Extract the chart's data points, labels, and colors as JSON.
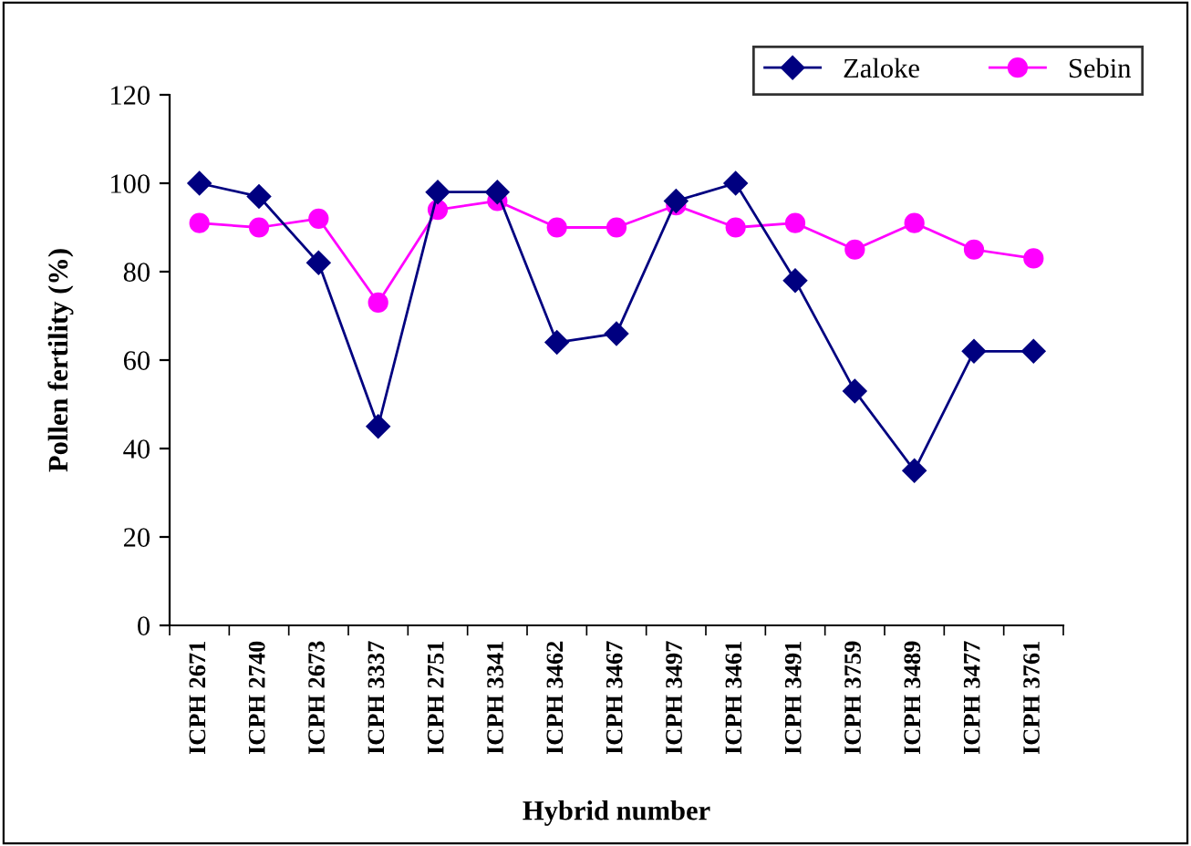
{
  "chart_data": {
    "type": "line",
    "xlabel": "Hybrid number",
    "ylabel": "Pollen fertility (%)",
    "categories": [
      "ICPH 2671",
      "ICPH 2740",
      "ICPH 2673",
      "ICPH 3337",
      "ICPH 2751",
      "ICPH 3341",
      "ICPH 3462",
      "ICPH 3467",
      "ICPH 3497",
      "ICPH 3461",
      "ICPH 3491",
      "ICPH 3759",
      "ICPH 3489",
      "ICPH 3477",
      "ICPH 3761"
    ],
    "series": [
      {
        "name": "Zaloke",
        "color": "#000080",
        "marker": "diamond",
        "values": [
          100,
          97,
          82,
          45,
          98,
          98,
          64,
          66,
          96,
          100,
          78,
          53,
          35,
          62,
          62
        ]
      },
      {
        "name": "Sebin",
        "color": "#ff00ff",
        "marker": "circle",
        "values": [
          91,
          90,
          92,
          73,
          94,
          96,
          90,
          90,
          95,
          90,
          91,
          85,
          91,
          85,
          83
        ]
      }
    ],
    "ylim": [
      0,
      120
    ],
    "yticks": [
      0,
      20,
      40,
      60,
      80,
      100,
      120
    ],
    "grid": false,
    "legend": "top right",
    "line_style": "solid"
  }
}
